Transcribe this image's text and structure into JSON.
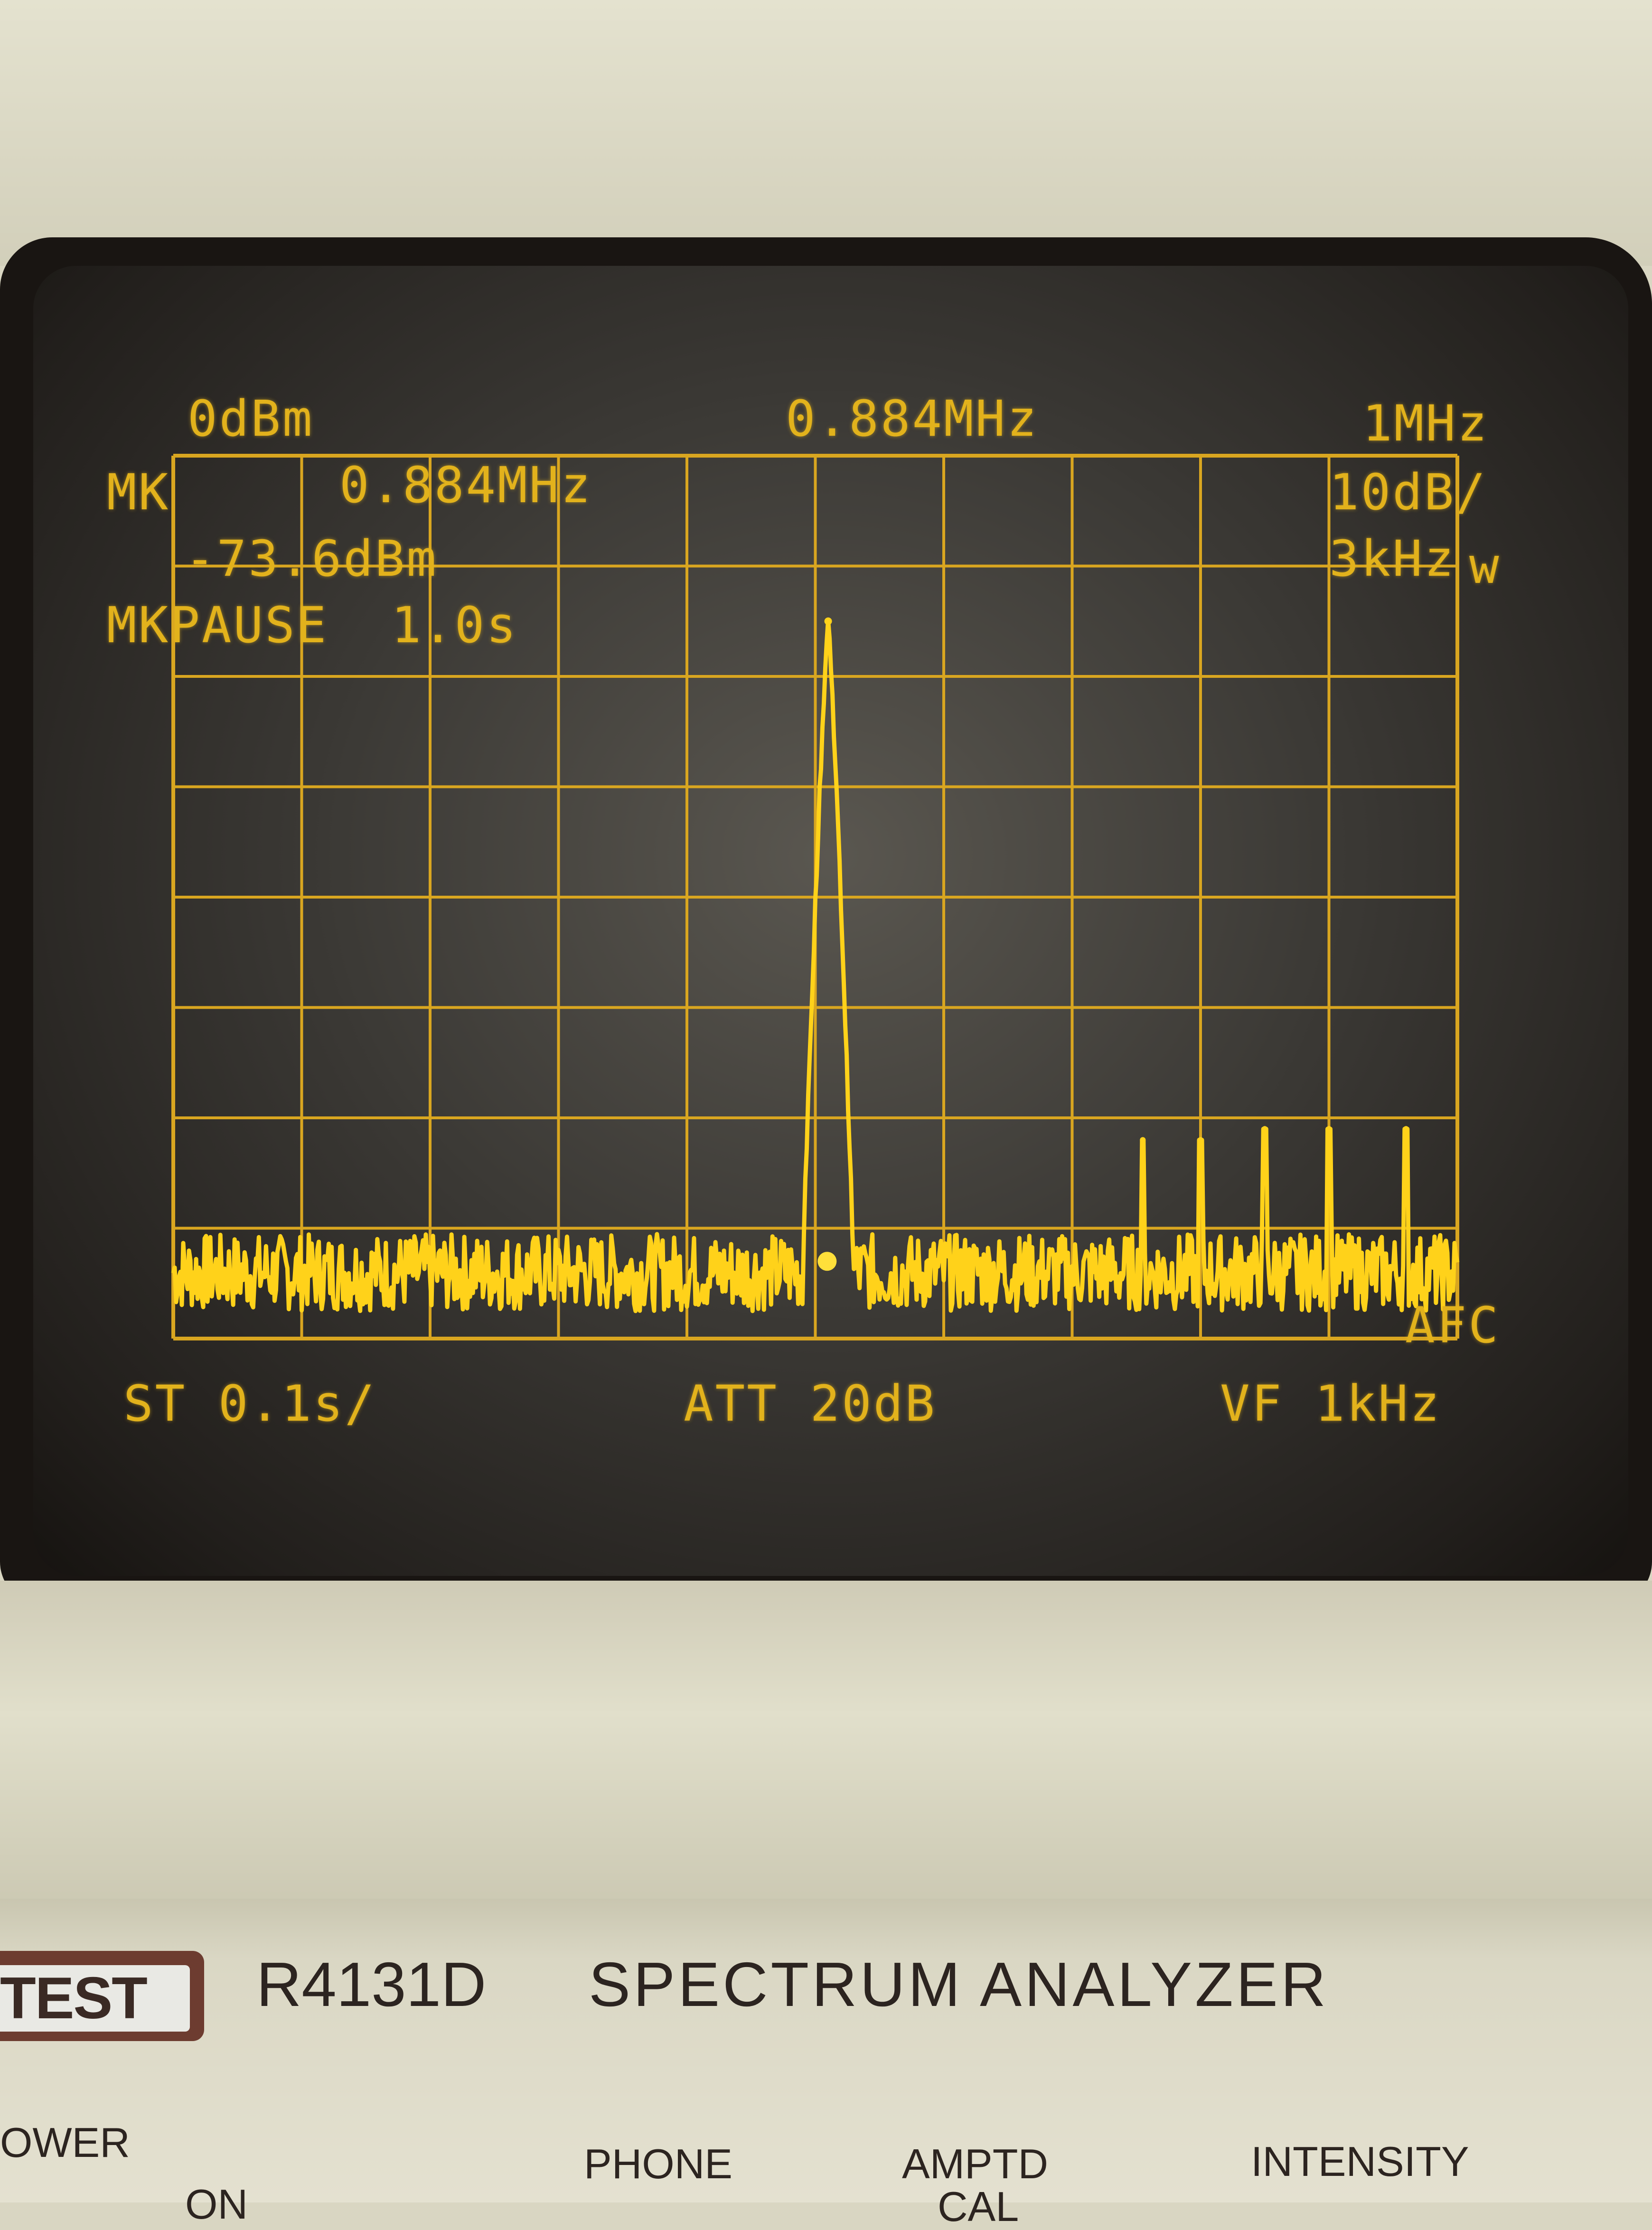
{
  "screen": {
    "ref_level": "0dBm",
    "center_freq": "0.884MHz",
    "span": "1MHz",
    "marker_label": "MK",
    "marker_freq": "0.884MHz",
    "marker_level": "-73.6dBm",
    "scale": "10dB/",
    "rbw": "3kHz",
    "rbw_suffix": "w",
    "marker_pause": "MKPAUSE  1.0s",
    "sweep_time": "ST 0.1s/",
    "attenuation": "ATT 20dB",
    "video_filter": "VF 1kHz",
    "afc": "AFC",
    "trace_color": "#ffd21a",
    "grid_color": "#d9a620"
  },
  "chart_data": {
    "type": "line",
    "x_unit": "MHz",
    "y_unit": "dBm",
    "xlim": [
      0.384,
      1.384
    ],
    "ylim": [
      -80,
      0
    ],
    "grid": true,
    "peak": {
      "x": 0.894,
      "y": -15
    },
    "noise_floor": -74,
    "spurs": [
      {
        "x": 1.139,
        "y": -62
      },
      {
        "x": 1.184,
        "y": -62
      },
      {
        "x": 1.234,
        "y": -61
      },
      {
        "x": 1.284,
        "y": -61
      },
      {
        "x": 1.344,
        "y": -61
      }
    ]
  },
  "panel": {
    "brand": "TEST",
    "model": "R4131D",
    "title": "SPECTRUM  ANALYZER",
    "power_label": "OWER",
    "power_on": "ON",
    "phone_label": "PHONE",
    "amptd_label": "AMPTD",
    "amptd_sub": "CAL",
    "intensity_label": "INTENSITY"
  }
}
